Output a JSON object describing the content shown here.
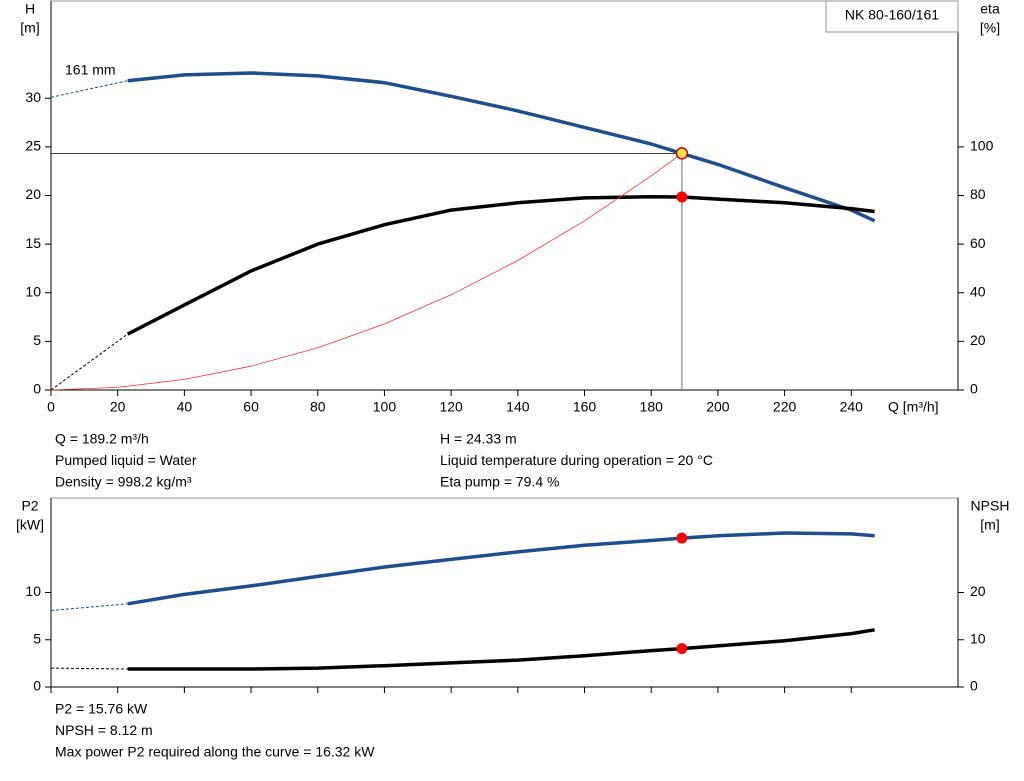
{
  "chart_data": [
    {
      "type": "line",
      "title": "NK 80-160/161",
      "annotation": "161 mm",
      "x_label": "Q [m³/h]",
      "y_label": "H",
      "y_unit": "[m]",
      "y2_label": "eta",
      "y2_unit": "[%]",
      "xlim": [
        0,
        272
      ],
      "xticks": [
        0,
        20,
        40,
        60,
        80,
        100,
        120,
        140,
        160,
        180,
        200,
        220,
        240
      ],
      "ylim": [
        0,
        40
      ],
      "yticks": [
        0,
        5,
        10,
        15,
        20,
        25,
        30
      ],
      "y2lim": [
        0,
        160
      ],
      "y2ticks": [
        0,
        20,
        40,
        60,
        80,
        100
      ],
      "series": [
        {
          "color": "#1f4e8c",
          "width": 3.5,
          "dashed_segments": 1,
          "x": [
            0,
            23,
            40,
            60,
            80,
            100,
            120,
            140,
            160,
            180,
            189.2,
            200,
            220,
            240,
            247
          ],
          "values": [
            30.1,
            31.8,
            32.4,
            32.6,
            32.3,
            31.6,
            30.2,
            28.7,
            27.0,
            25.3,
            24.33,
            23.2,
            20.8,
            18.5,
            17.4
          ]
        },
        {
          "color": "#000000",
          "width": 3.5,
          "dashed_segments": 1,
          "axis": "y2",
          "x": [
            0,
            23,
            40,
            60,
            80,
            100,
            120,
            140,
            160,
            180,
            189.2,
            200,
            220,
            240,
            247
          ],
          "values": [
            0,
            23,
            35,
            49,
            60,
            68,
            74,
            77,
            79,
            79.5,
            79.4,
            78.5,
            77,
            74.6,
            73.4
          ]
        },
        {
          "color": "#ff3333",
          "width": 0.8,
          "dashed_segments": 0,
          "x": [
            0,
            20,
            40,
            60,
            80,
            100,
            120,
            140,
            160,
            180,
            189.2
          ],
          "values": [
            0,
            0.27,
            1.09,
            2.45,
            4.35,
            6.8,
            9.79,
            13.32,
            17.4,
            22.02,
            24.33
          ]
        }
      ],
      "points": [
        {
          "x": 189.2,
          "y": 24.33,
          "color": "#ffe14d",
          "crosshair": true
        },
        {
          "x": 189.2,
          "y": 79.4,
          "color": "#ff0000",
          "axis": "y2"
        }
      ],
      "info_left": [
        "Q = 189.2 m³/h",
        "Pumped liquid = Water",
        "Density = 998.2 kg/m³"
      ],
      "info_right": [
        "H = 24.33 m",
        "Liquid temperature during operation = 20 °C",
        "Eta pump = 79.4 %"
      ]
    },
    {
      "type": "line",
      "y_label": "P2",
      "y_unit": "[kW]",
      "y2_label": "NPSH",
      "y2_unit": "[m]",
      "xlim": [
        0,
        272
      ],
      "xticks": [
        0,
        20,
        40,
        60,
        80,
        100,
        120,
        140,
        160,
        180,
        200,
        220,
        240
      ],
      "ylim": [
        0,
        20
      ],
      "yticks": [
        0,
        5,
        10
      ],
      "y2lim": [
        0,
        40
      ],
      "y2ticks": [
        0,
        10,
        20
      ],
      "series": [
        {
          "color": "#1f4e8c",
          "width": 3.5,
          "dashed_segments": 1,
          "x": [
            0,
            23,
            40,
            60,
            80,
            100,
            120,
            140,
            160,
            180,
            189.2,
            200,
            220,
            240,
            247
          ],
          "values": [
            8.1,
            8.8,
            9.8,
            10.7,
            11.7,
            12.7,
            13.5,
            14.3,
            15.0,
            15.5,
            15.76,
            16.0,
            16.3,
            16.2,
            16.0
          ]
        },
        {
          "color": "#000000",
          "width": 3.5,
          "dashed_segments": 1,
          "axis": "y2",
          "x": [
            0,
            23,
            40,
            60,
            80,
            100,
            120,
            140,
            160,
            180,
            189.2,
            200,
            220,
            240,
            247
          ],
          "values": [
            4.0,
            3.8,
            3.8,
            3.8,
            4.0,
            4.5,
            5.1,
            5.7,
            6.6,
            7.7,
            8.12,
            8.7,
            9.8,
            11.3,
            12.1
          ]
        }
      ],
      "points": [
        {
          "x": 189.2,
          "y": 15.76,
          "color": "#ff0000"
        },
        {
          "x": 189.2,
          "y": 8.12,
          "color": "#ff0000",
          "axis": "y2"
        }
      ],
      "info": [
        "P2 = 15.76 kW",
        "NPSH = 8.12 m",
        "Max power P2 required along the curve = 16.32 kW"
      ]
    }
  ]
}
